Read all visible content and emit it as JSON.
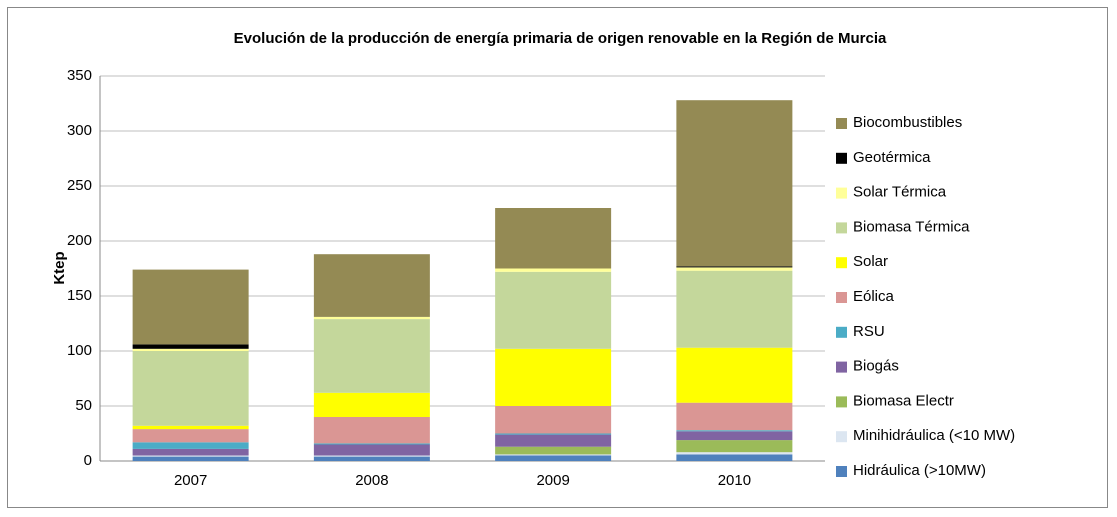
{
  "chart_data": {
    "type": "stacked_bar",
    "title": "Evolución de la producción de energía primaria de origen renovable en la Región de Murcia",
    "y_label": "Ktep",
    "categories": [
      "2007",
      "2008",
      "2009",
      "2010"
    ],
    "series": [
      {
        "name": "Hidráulica (>10MW)",
        "color": "#4f81bd",
        "values": [
          4,
          4,
          5,
          6
        ]
      },
      {
        "name": "Minihidráulica (<10 MW)",
        "color": "#dce6f1",
        "values": [
          1,
          1,
          1,
          2
        ]
      },
      {
        "name": "Biomasa Electr",
        "color": "#9bbb59",
        "values": [
          0,
          0,
          7,
          11
        ]
      },
      {
        "name": "Biogás",
        "color": "#8064a2",
        "values": [
          6,
          10,
          11,
          8
        ]
      },
      {
        "name": "RSU",
        "color": "#4bacc6",
        "values": [
          6,
          1,
          1,
          1
        ]
      },
      {
        "name": "Eólica",
        "color": "#da9694",
        "values": [
          12,
          24,
          25,
          25
        ]
      },
      {
        "name": "Solar",
        "color": "#ffff00",
        "values": [
          3,
          22,
          52,
          50
        ]
      },
      {
        "name": "Biomasa Térmica",
        "color": "#c4d79b",
        "values": [
          68,
          67,
          70,
          70
        ]
      },
      {
        "name": "Solar Térmica",
        "color": "#ffff99",
        "values": [
          2,
          2,
          3,
          3
        ]
      },
      {
        "name": "Geotérmica",
        "color": "#000000",
        "values": [
          4,
          0,
          0,
          1
        ]
      },
      {
        "name": "Biocombustibles",
        "color": "#948a54",
        "values": [
          68,
          57,
          55,
          151
        ]
      }
    ],
    "ylim": [
      0,
      350
    ],
    "yticks": [
      0,
      50,
      100,
      150,
      200,
      250,
      300,
      350
    ],
    "grid": true,
    "legend": "right"
  }
}
